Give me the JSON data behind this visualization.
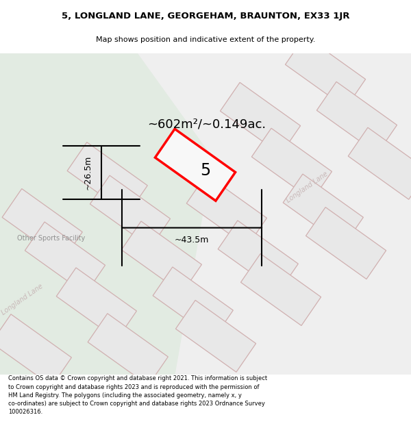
{
  "title_line1": "5, LONGLAND LANE, GEORGEHAM, BRAUNTON, EX33 1JR",
  "title_line2": "Map shows position and indicative extent of the property.",
  "area_text": "~602m²/~0.149ac.",
  "property_number": "5",
  "dim_width": "~43.5m",
  "dim_height": "~26.5m",
  "sports_label": "Other Sports Facility",
  "road_label_top": "Longland Lane",
  "road_label_mid": "Longland Lane",
  "footer_text": "Contains OS data © Crown copyright and database right 2021. This information is subject to Crown copyright and database rights 2023 and is reproduced with the permission of HM Land Registry. The polygons (including the associated geometry, namely x, y co-ordinates) are subject to Crown copyright and database rights 2023 Ordnance Survey 100026316.",
  "bg_map_color": "#efefef",
  "bg_green_color": "#e2ebe2",
  "block_fill": "#e8e8e8",
  "block_edge": "#d0b0b0",
  "highlight_edge": "#ff0000",
  "highlight_fill": "#f8f8f8",
  "dim_color": "#000000",
  "title_color": "#000000",
  "road_label_color": "#c8b8b8",
  "sports_color": "#909090",
  "title_fontsize": 9.5,
  "subtitle_fontsize": 8.0,
  "footer_fontsize": 6.0
}
